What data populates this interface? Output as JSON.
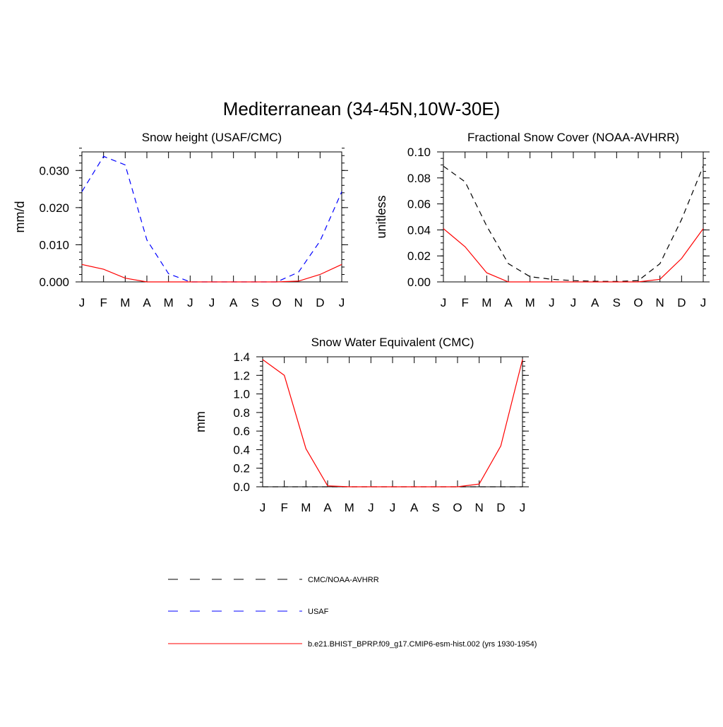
{
  "title": "Mediterranean (34-45N,10W-30E)",
  "months": [
    "J",
    "F",
    "M",
    "A",
    "M",
    "J",
    "J",
    "A",
    "S",
    "O",
    "N",
    "D",
    "J"
  ],
  "colors": {
    "obs": "#000000",
    "usaf": "#0000ff",
    "model": "#ff0000"
  },
  "legend": [
    {
      "label": "CMC/NOAA-AVHRR",
      "color": "#000000",
      "dash": "dashed"
    },
    {
      "label": "USAF",
      "color": "#0000ff",
      "dash": "dashed"
    },
    {
      "label": "b.e21.BHIST_BPRP.f09_g17.CMIP6-esm-hist.002 (yrs 1930-1954)",
      "color": "#ff0000",
      "dash": "solid"
    }
  ],
  "chart_data": [
    {
      "type": "line",
      "title": "Snow height (USAF/CMC)",
      "ylabel": "mm/d",
      "ylim": [
        0,
        0.035
      ],
      "yticks": [
        0.0,
        0.01,
        0.02,
        0.03
      ],
      "ytick_labels": [
        "0.000",
        "0.010",
        "0.020",
        "0.030"
      ],
      "y_minor_step": 0.002,
      "series": [
        {
          "name": "USAF",
          "style": "dashed",
          "color": "#0000ff",
          "values": [
            0.0243,
            0.0338,
            0.0315,
            0.0113,
            0.0022,
            0.0,
            0.0,
            0.0,
            0.0,
            0.0,
            0.0026,
            0.011,
            0.0243
          ]
        },
        {
          "name": "b.e21.BHIST_BPRP.f09_g17.CMIP6-esm-hist.002 (yrs 1930-1954)",
          "style": "solid",
          "color": "#ff0000",
          "values": [
            0.0047,
            0.0034,
            0.001,
            0.0,
            0.0,
            0.0,
            0.0,
            0.0,
            0.0,
            0.0,
            0.0002,
            0.002,
            0.0047
          ]
        }
      ]
    },
    {
      "type": "line",
      "title": "Fractional Snow Cover (NOAA-AVHRR)",
      "ylabel": "unitless",
      "ylim": [
        0,
        0.1
      ],
      "yticks": [
        0.0,
        0.02,
        0.04,
        0.06,
        0.08,
        0.1
      ],
      "ytick_labels": [
        "0.00",
        "0.02",
        "0.04",
        "0.06",
        "0.08",
        "0.10"
      ],
      "y_minor_step": 0.005,
      "series": [
        {
          "name": "CMC/NOAA-AVHRR",
          "style": "dashed",
          "color": "#000000",
          "values": [
            0.089,
            0.077,
            0.043,
            0.014,
            0.004,
            0.002,
            0.001,
            0.0005,
            0.0003,
            0.001,
            0.014,
            0.048,
            0.089
          ]
        },
        {
          "name": "b.e21.BHIST_BPRP.f09_g17.CMIP6-esm-hist.002 (yrs 1930-1954)",
          "style": "solid",
          "color": "#ff0000",
          "values": [
            0.041,
            0.027,
            0.007,
            0.0,
            0.0,
            0.0,
            0.0,
            0.0,
            0.0,
            0.0,
            0.002,
            0.018,
            0.041
          ]
        }
      ]
    },
    {
      "type": "line",
      "title": "Snow Water Equivalent (CMC)",
      "ylabel": "mm",
      "ylim": [
        0,
        1.4
      ],
      "yticks": [
        0.0,
        0.2,
        0.4,
        0.6,
        0.8,
        1.0,
        1.2,
        1.4
      ],
      "ytick_labels": [
        "0.0",
        "0.2",
        "0.4",
        "0.6",
        "0.8",
        "1.0",
        "1.2",
        "1.4"
      ],
      "y_minor_step": 0.05,
      "series": [
        {
          "name": "CMC/NOAA-AVHRR",
          "style": "dashed",
          "color": "#000000",
          "values": [
            0,
            0,
            0,
            0,
            0,
            0,
            0,
            0,
            0,
            0,
            0,
            0,
            0
          ]
        },
        {
          "name": "b.e21.BHIST_BPRP.f09_g17.CMIP6-esm-hist.002 (yrs 1930-1954)",
          "style": "solid",
          "color": "#ff0000",
          "values": [
            1.37,
            1.2,
            0.41,
            0.01,
            0.0,
            0.0,
            0.0,
            0.0,
            0.0,
            0.0,
            0.03,
            0.44,
            1.37
          ]
        }
      ]
    }
  ]
}
